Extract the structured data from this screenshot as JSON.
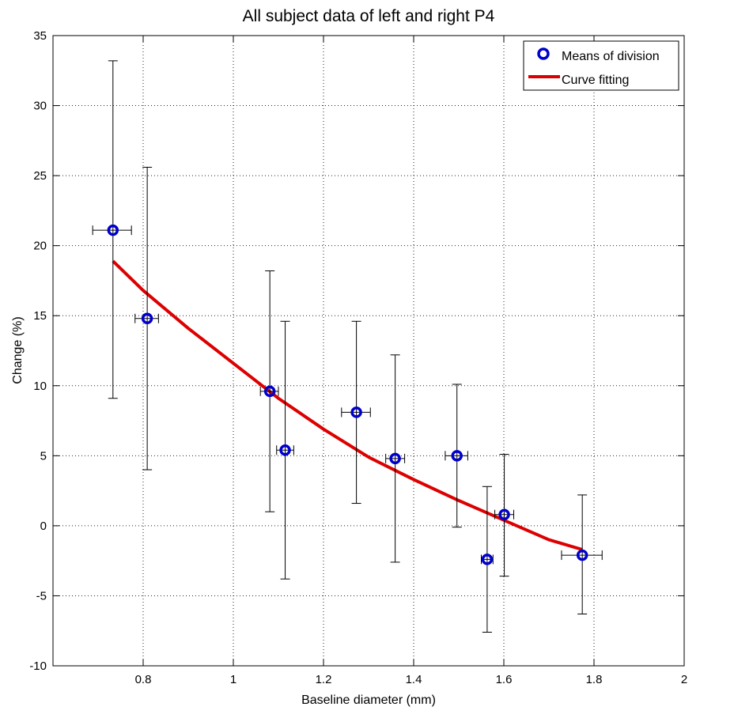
{
  "chart_data": {
    "type": "scatter",
    "title": "All subject data of left and right P4",
    "xlabel": "Baseline diameter (mm)",
    "ylabel": "Change (%)",
    "xlim": [
      0.6,
      2.0
    ],
    "ylim": [
      -10,
      35
    ],
    "xticks": [
      0.8,
      1.0,
      1.2,
      1.4,
      1.6,
      1.8,
      2.0
    ],
    "xtick_labels": [
      "0.8",
      "1",
      "1.2",
      "1.4",
      "1.6",
      "1.8",
      "2"
    ],
    "yticks": [
      -10,
      -5,
      0,
      5,
      10,
      15,
      20,
      25,
      30,
      35
    ],
    "ytick_labels": [
      "-10",
      "-5",
      "0",
      "5",
      "10",
      "15",
      "20",
      "25",
      "30",
      "35"
    ],
    "grid": true,
    "legend_position": "top-right",
    "series": [
      {
        "name": "Means of division",
        "kind": "markers-with-errorbars",
        "color": "#0000cc",
        "x": [
          0.733,
          0.809,
          1.081,
          1.115,
          1.273,
          1.359,
          1.496,
          1.563,
          1.601,
          1.774
        ],
        "y": [
          21.1,
          14.8,
          9.6,
          5.4,
          8.1,
          4.8,
          5.0,
          -2.4,
          0.8,
          -2.1
        ],
        "y_lower": [
          9.1,
          4.0,
          1.0,
          -3.8,
          1.6,
          -2.6,
          -0.1,
          -7.6,
          -3.6,
          -6.3
        ],
        "y_upper": [
          33.2,
          25.6,
          18.2,
          14.6,
          14.6,
          12.2,
          10.1,
          2.8,
          5.1,
          2.2
        ],
        "x_lower": [
          0.688,
          0.782,
          1.06,
          1.096,
          1.24,
          1.338,
          1.47,
          1.55,
          1.58,
          1.728
        ],
        "x_upper": [
          0.774,
          0.834,
          1.1,
          1.134,
          1.304,
          1.38,
          1.52,
          1.576,
          1.622,
          1.818
        ]
      },
      {
        "name": "Curve fitting",
        "kind": "line",
        "color": "#dd0000",
        "x": [
          0.733,
          0.8,
          0.9,
          1.0,
          1.1,
          1.2,
          1.3,
          1.4,
          1.5,
          1.6,
          1.7,
          1.774
        ],
        "y": [
          18.9,
          16.8,
          14.1,
          11.6,
          9.1,
          6.9,
          4.9,
          3.3,
          1.8,
          0.4,
          -1.0,
          -1.7
        ]
      }
    ]
  }
}
